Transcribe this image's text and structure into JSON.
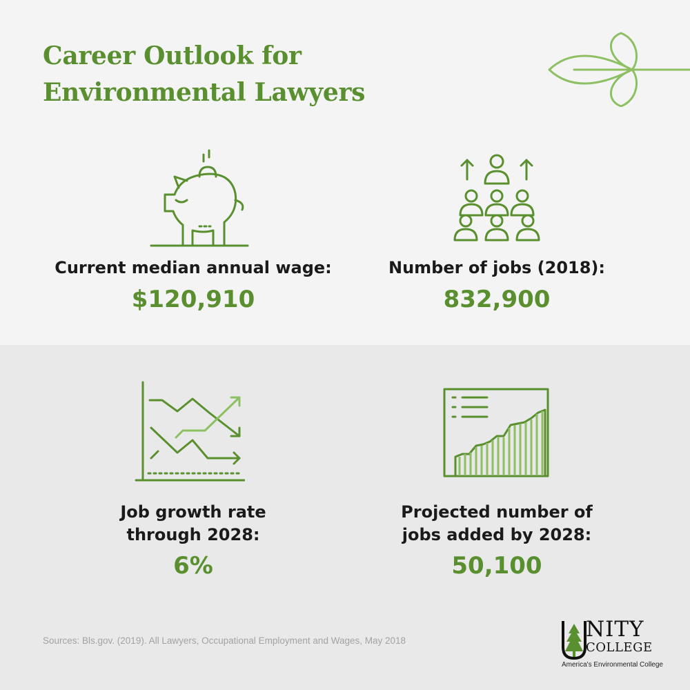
{
  "header": {
    "title_line1": "Career Outlook for",
    "title_line2": "Environmental Lawyers"
  },
  "stats": {
    "wage": {
      "icon": "piggy-bank-icon",
      "label": "Current median annual wage:",
      "value": "$120,910"
    },
    "jobs": {
      "icon": "people-growth-icon",
      "label": "Number of jobs (2018):",
      "value": "832,900"
    },
    "growth": {
      "icon": "trend-chart-icon",
      "label_line1": "Job growth rate",
      "label_line2": "through 2028:",
      "value": "6%"
    },
    "projected": {
      "icon": "bar-growth-chart-icon",
      "label_line1": "Projected number of",
      "label_line2": "jobs added by 2028:",
      "value": "50,100"
    }
  },
  "footer": {
    "sources": "Sources: Bls.gov. (2019). All Lawyers, Occupational Employment and Wages, May 2018"
  },
  "logo": {
    "word1": "NITY",
    "word2": "COLLEGE",
    "tagline": "America's Environmental College"
  },
  "colors": {
    "accent_green": "#5a8f2f",
    "light_green": "#8cc063",
    "top_background": "#f4f4f4",
    "bottom_background": "#e9e9e9"
  }
}
